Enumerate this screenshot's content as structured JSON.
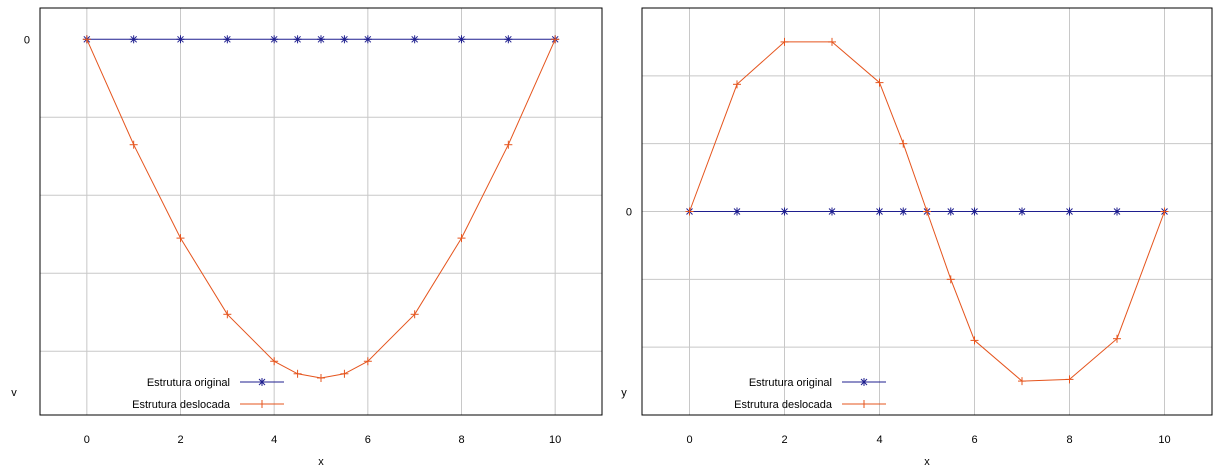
{
  "chart_data": [
    {
      "type": "line",
      "xlabel": "x",
      "ylabel": "v",
      "xlim": [
        -1,
        11
      ],
      "ylim": [
        -0.72,
        0.06
      ],
      "x_ticks": [
        0,
        2,
        4,
        6,
        8,
        10
      ],
      "y_ticks": [
        0
      ],
      "grid": true,
      "legend_position": "bottom-left",
      "series": [
        {
          "name": "Estrutura original",
          "marker": "asterisk",
          "color": "#1f1f8f",
          "x": [
            0,
            1,
            2,
            3,
            4,
            4.5,
            5,
            5.5,
            6,
            7,
            8,
            9,
            10
          ],
          "y": [
            0,
            0,
            0,
            0,
            0,
            0,
            0,
            0,
            0,
            0,
            0,
            0,
            0
          ]
        },
        {
          "name": "Estrutura deslocada",
          "marker": "plus",
          "color": "#e5541d",
          "x": [
            0,
            1,
            2,
            3,
            4,
            4.5,
            5,
            5.5,
            6,
            7,
            8,
            9,
            10
          ],
          "y": [
            0,
            -0.202,
            -0.381,
            -0.527,
            -0.617,
            -0.641,
            -0.649,
            -0.641,
            -0.617,
            -0.527,
            -0.381,
            -0.202,
            0
          ]
        }
      ]
    },
    {
      "type": "line",
      "xlabel": "x",
      "ylabel": "y",
      "xlim": [
        -1,
        11
      ],
      "ylim": [
        -1.2,
        1.2
      ],
      "x_ticks": [
        0,
        2,
        4,
        6,
        8,
        10
      ],
      "y_ticks": [
        0
      ],
      "grid": true,
      "legend_position": "bottom-left",
      "series": [
        {
          "name": "Estrutura original",
          "marker": "asterisk",
          "color": "#1f1f8f",
          "x": [
            0,
            1,
            2,
            3,
            4,
            4.5,
            5,
            5.5,
            6,
            7,
            8,
            9,
            10
          ],
          "y": [
            0,
            0,
            0,
            0,
            0,
            0,
            0,
            0,
            0,
            0,
            0,
            0,
            0
          ]
        },
        {
          "name": "Estrutura deslocada",
          "marker": "plus",
          "color": "#e5541d",
          "x": [
            0,
            1,
            2,
            3,
            4,
            4.5,
            5,
            5.5,
            6,
            7,
            8,
            9,
            10
          ],
          "y": [
            0,
            0.75,
            1.0,
            1.0,
            0.76,
            0.4,
            0,
            -0.4,
            -0.76,
            -1.0,
            -0.99,
            -0.75,
            0
          ]
        }
      ]
    }
  ]
}
